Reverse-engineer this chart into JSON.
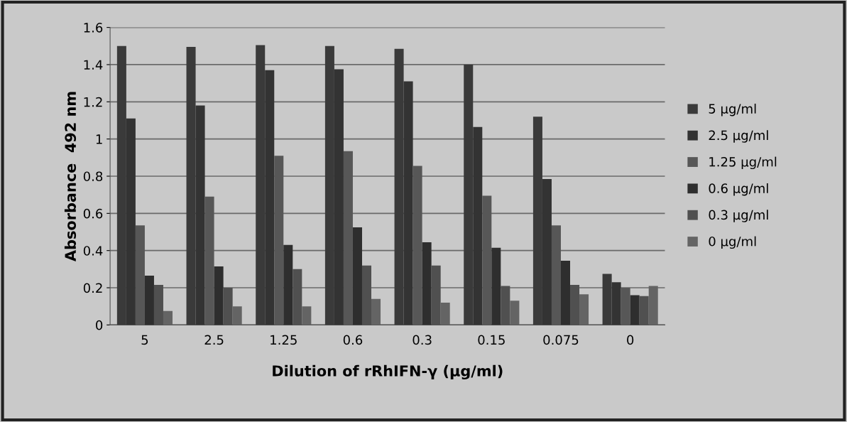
{
  "chart_data": {
    "type": "bar",
    "xlabel": "Dilution of rRhIFN-γ (μg/ml)",
    "ylabel": "Absorbance  492 nm",
    "categories": [
      "5",
      "2.5",
      "1.25",
      "0.6",
      "0.3",
      "0.15",
      "0.075",
      "0"
    ],
    "series": [
      {
        "name": "5 μg/ml",
        "color": "#3a3a3a",
        "values": [
          1.5,
          1.495,
          1.505,
          1.5,
          1.485,
          1.4,
          1.12,
          0.275
        ]
      },
      {
        "name": "2.5 μg/ml",
        "color": "#333333",
        "values": [
          1.11,
          1.18,
          1.37,
          1.375,
          1.31,
          1.065,
          0.785,
          0.23
        ]
      },
      {
        "name": "1.25 μg/ml",
        "color": "#575757",
        "values": [
          0.535,
          0.69,
          0.91,
          0.935,
          0.855,
          0.695,
          0.535,
          0.2
        ]
      },
      {
        "name": "0.6 μg/ml",
        "color": "#2e2e2e",
        "values": [
          0.265,
          0.315,
          0.43,
          0.525,
          0.445,
          0.415,
          0.345,
          0.16
        ]
      },
      {
        "name": "0.3 μg/ml",
        "color": "#505050",
        "values": [
          0.215,
          0.2,
          0.3,
          0.32,
          0.32,
          0.21,
          0.215,
          0.155
        ]
      },
      {
        "name": "0 μg/ml",
        "color": "#646464",
        "values": [
          0.075,
          0.1,
          0.1,
          0.14,
          0.12,
          0.13,
          0.165,
          0.21
        ]
      }
    ],
    "ylim": [
      0,
      1.6
    ],
    "yticks": [
      0,
      0.2,
      0.4,
      0.6,
      0.8,
      1,
      1.2,
      1.4,
      1.6
    ],
    "grid": "y",
    "legend": "right"
  }
}
